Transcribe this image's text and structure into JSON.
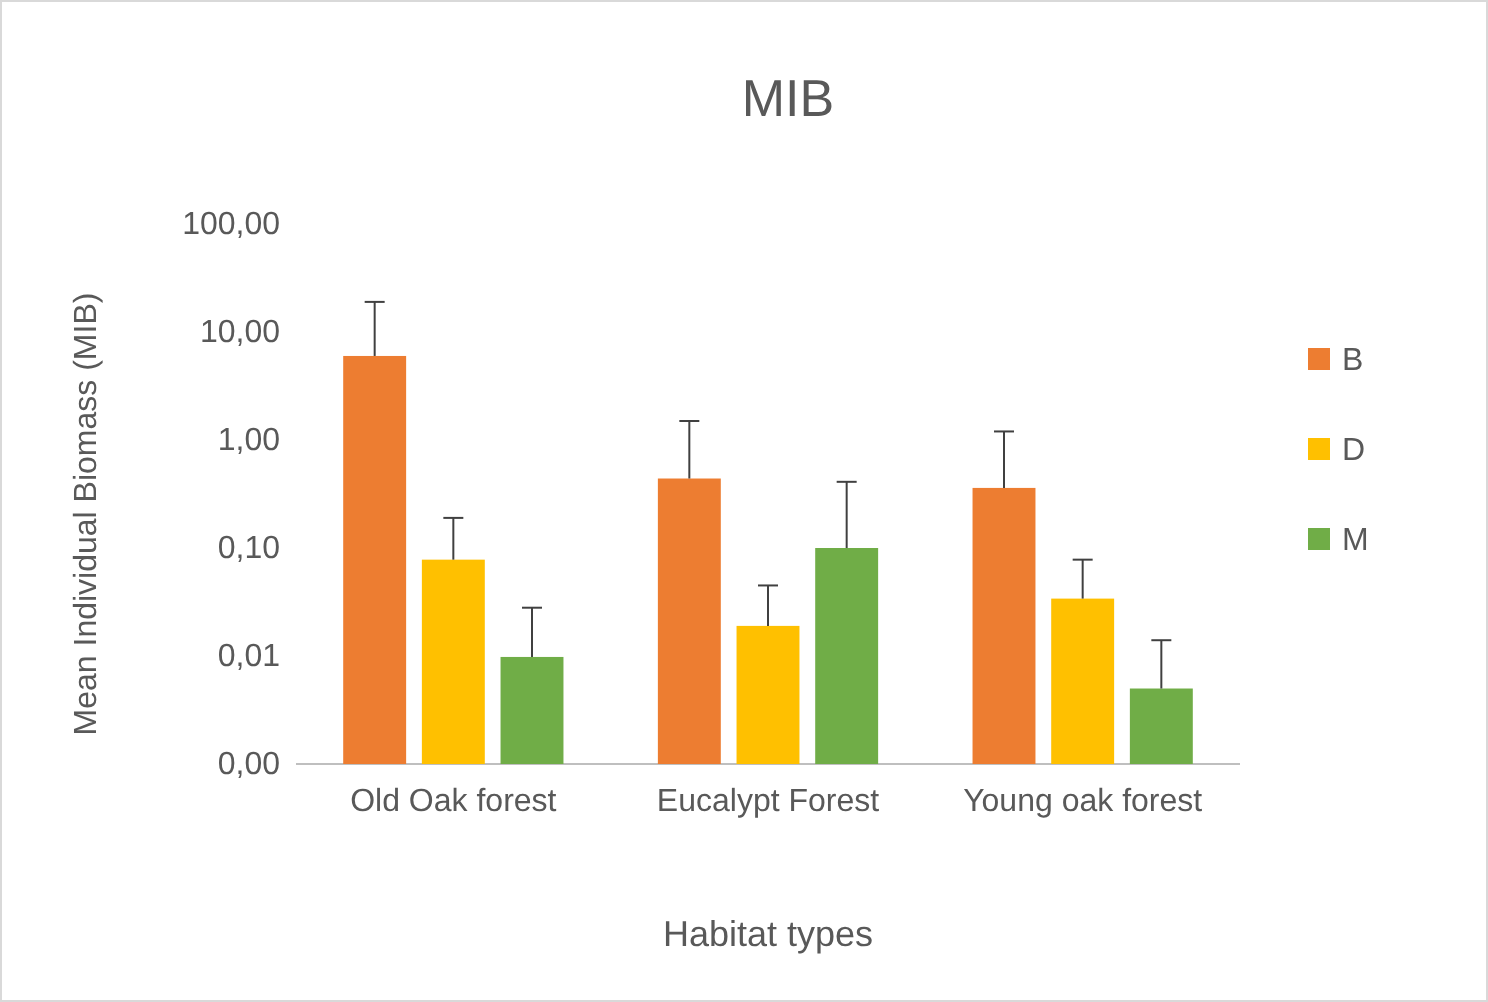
{
  "chart_data": {
    "type": "bar",
    "title": "MIB",
    "xlabel": "Habitat types",
    "ylabel": "Mean Individual Biomass (MIB)",
    "categories": [
      "Old Oak forest",
      "Eucalypt Forest",
      "Young oak forest"
    ],
    "series": [
      {
        "name": "B",
        "color": "#ed7d31",
        "values": [
          6.0,
          0.44,
          0.36
        ],
        "errors": [
          [
            6.0,
            19
          ],
          [
            0.44,
            1.5
          ],
          [
            0.36,
            1.2
          ]
        ]
      },
      {
        "name": "D",
        "color": "#ffc000",
        "values": [
          0.078,
          0.019,
          0.034
        ],
        "errors": [
          [
            0.078,
            0.19
          ],
          [
            0.019,
            0.045
          ],
          [
            0.034,
            0.078
          ]
        ]
      },
      {
        "name": "M",
        "color": "#70ad47",
        "values": [
          0.0098,
          0.1,
          0.005
        ],
        "errors": [
          [
            0.0098,
            0.028
          ],
          [
            0.1,
            0.41
          ],
          [
            0.005,
            0.014
          ]
        ]
      }
    ],
    "log": true,
    "ylim": [
      0.001,
      100
    ],
    "yticks": [
      {
        "value": 0.001,
        "label": "0,00"
      },
      {
        "value": 0.01,
        "label": "0,01"
      },
      {
        "value": 0.1,
        "label": "0,10"
      },
      {
        "value": 1,
        "label": "1,00"
      },
      {
        "value": 10,
        "label": "10,00"
      },
      {
        "value": 100,
        "label": "100,00"
      }
    ],
    "grid": false,
    "legend": "right"
  }
}
